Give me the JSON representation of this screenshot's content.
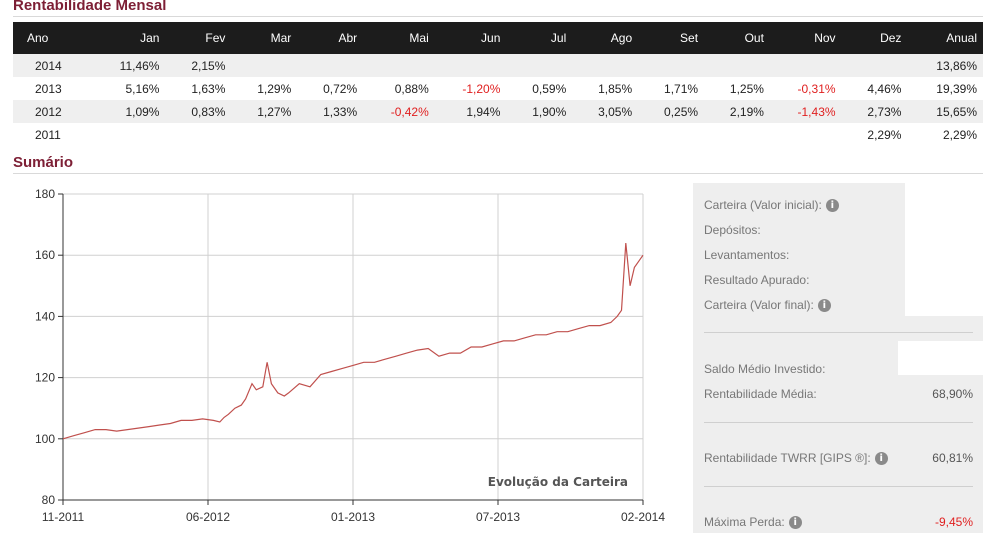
{
  "rentabilidade": {
    "title": "Rentabilidade Mensal",
    "headers": [
      "Ano",
      "Jan",
      "Fev",
      "Mar",
      "Abr",
      "Mai",
      "Jun",
      "Jul",
      "Ago",
      "Set",
      "Out",
      "Nov",
      "Dez",
      "Anual"
    ],
    "rows": [
      [
        "2014",
        "11,46%",
        "2,15%",
        "",
        "",
        "",
        "",
        "",
        "",
        "",
        "",
        "",
        "",
        "13,86%"
      ],
      [
        "2013",
        "5,16%",
        "1,63%",
        "1,29%",
        "0,72%",
        "0,88%",
        "-1,20%",
        "0,59%",
        "1,85%",
        "1,71%",
        "1,25%",
        "-0,31%",
        "4,46%",
        "19,39%"
      ],
      [
        "2012",
        "1,09%",
        "0,83%",
        "1,27%",
        "1,33%",
        "-0,42%",
        "1,94%",
        "1,90%",
        "3,05%",
        "0,25%",
        "2,19%",
        "-1,43%",
        "2,73%",
        "15,65%"
      ],
      [
        "2011",
        "",
        "",
        "",
        "",
        "",
        "",
        "",
        "",
        "",
        "",
        "",
        "2,29%",
        "2,29%"
      ]
    ],
    "negative_color": "#e01f1f"
  },
  "sumario": {
    "title": "Sumário",
    "items": {
      "carteira_inicial": {
        "label": "Carteira (Valor inicial):",
        "value": ""
      },
      "depositos": {
        "label": "Depósitos:",
        "value": ""
      },
      "levantamentos": {
        "label": "Levantamentos:",
        "value": ""
      },
      "resultado": {
        "label": "Resultado Apurado:",
        "value": ""
      },
      "carteira_final": {
        "label": "Carteira (Valor final):",
        "value": ""
      },
      "saldo_medio": {
        "label": "Saldo Médio Investido:",
        "value": ""
      },
      "rent_media": {
        "label": "Rentabilidade Média:",
        "value": "68,90%"
      },
      "twrr": {
        "label": "Rentabilidade TWRR [GIPS ®]:",
        "value": "60,81%"
      },
      "max_perda": {
        "label": "Máxima Perda:",
        "value": "-9,45%"
      }
    },
    "info_icon_glyph": "i"
  },
  "chart_data": {
    "type": "line",
    "title": "Evolução da Carteira",
    "x_tick_labels": [
      "11-2011",
      "06-2012",
      "01-2013",
      "07-2013",
      "02-2014"
    ],
    "x": [
      0,
      0.5,
      1,
      1.5,
      2,
      2.5,
      3,
      3.5,
      4,
      4.5,
      5,
      5.5,
      6,
      6.5,
      7,
      7.3,
      7.5,
      7.7,
      8,
      8.3,
      8.5,
      8.8,
      9,
      9.3,
      9.5,
      9.7,
      10,
      10.3,
      10.5,
      11,
      11.5,
      12,
      12.5,
      13,
      13.5,
      14,
      14.5,
      15,
      15.5,
      16,
      16.5,
      17,
      17.5,
      18,
      18.5,
      19,
      19.5,
      20,
      20.5,
      21,
      21.5,
      22,
      22.5,
      23,
      23.5,
      24,
      24.5,
      25,
      25.5,
      25.8,
      26,
      26.2,
      26.4,
      26.6,
      26.8,
      27
    ],
    "series": [
      {
        "values": [
          100,
          101,
          102,
          103,
          103,
          102.5,
          103,
          103.5,
          104,
          104.5,
          105,
          106,
          106,
          106.5,
          106,
          105.5,
          107,
          108,
          110,
          111,
          113,
          118,
          116,
          117,
          125,
          118,
          115,
          114,
          115,
          118,
          117,
          121,
          122,
          123,
          124,
          125,
          125,
          126,
          127,
          128,
          129,
          129.5,
          127,
          128,
          128,
          130,
          130,
          131,
          132,
          132,
          133,
          134,
          134,
          135,
          135,
          136,
          137,
          137,
          138,
          140,
          142,
          164,
          150,
          156,
          158,
          160
        ]
      }
    ],
    "ylim": [
      80,
      180
    ],
    "y_ticks": [
      80,
      100,
      120,
      140,
      160,
      180
    ],
    "xlim": [
      0,
      27
    ],
    "grid": true,
    "line_color": "#c0504d"
  }
}
